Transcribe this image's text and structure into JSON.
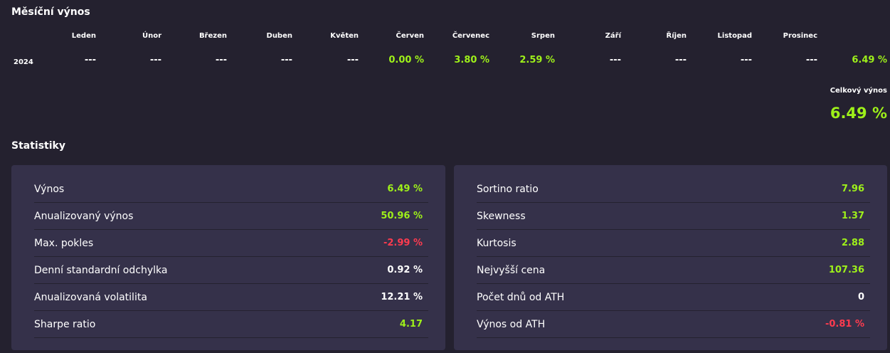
{
  "monthly": {
    "title": "Měsíční výnos",
    "year": "2024",
    "months": [
      {
        "name": "Leden",
        "value": "---",
        "tone": "neutral"
      },
      {
        "name": "Únor",
        "value": "---",
        "tone": "neutral"
      },
      {
        "name": "Březen",
        "value": "---",
        "tone": "neutral"
      },
      {
        "name": "Duben",
        "value": "---",
        "tone": "neutral"
      },
      {
        "name": "Květen",
        "value": "---",
        "tone": "neutral"
      },
      {
        "name": "Červen",
        "value": "0.00 %",
        "tone": "pos"
      },
      {
        "name": "Červenec",
        "value": "3.80 %",
        "tone": "pos"
      },
      {
        "name": "Srpen",
        "value": "2.59 %",
        "tone": "pos"
      },
      {
        "name": "Září",
        "value": "---",
        "tone": "neutral"
      },
      {
        "name": "Říjen",
        "value": "---",
        "tone": "neutral"
      },
      {
        "name": "Listopad",
        "value": "---",
        "tone": "neutral"
      },
      {
        "name": "Prosinec",
        "value": "---",
        "tone": "neutral"
      }
    ],
    "year_total": "6.49 %",
    "total_label": "Celkový výnos",
    "total_value": "6.49 %"
  },
  "statistics": {
    "title": "Statistiky",
    "left": [
      {
        "label": "Výnos",
        "value": "6.49 %",
        "tone": "pos"
      },
      {
        "label": "Anualizovaný výnos",
        "value": "50.96 %",
        "tone": "pos"
      },
      {
        "label": "Max. pokles",
        "value": "-2.99 %",
        "tone": "neg"
      },
      {
        "label": "Denní standardní odchylka",
        "value": "0.92 %",
        "tone": "neutral"
      },
      {
        "label": "Anualizovaná volatilita",
        "value": "12.21 %",
        "tone": "neutral"
      },
      {
        "label": "Sharpe ratio",
        "value": "4.17",
        "tone": "pos"
      }
    ],
    "right": [
      {
        "label": "Sortino ratio",
        "value": "7.96",
        "tone": "pos"
      },
      {
        "label": "Skewness",
        "value": "1.37",
        "tone": "pos"
      },
      {
        "label": "Kurtosis",
        "value": "2.88",
        "tone": "pos"
      },
      {
        "label": "Nejvyšší cena",
        "value": "107.36",
        "tone": "pos"
      },
      {
        "label": "Počet dnů od ATH",
        "value": "0",
        "tone": "neutral"
      },
      {
        "label": "Výnos od ATH",
        "value": "-0.81 %",
        "tone": "neg"
      }
    ]
  },
  "colors": {
    "background": "#24212f",
    "panel": "#35314a",
    "positive": "#9ef01a",
    "negative": "#ff3b4f"
  }
}
